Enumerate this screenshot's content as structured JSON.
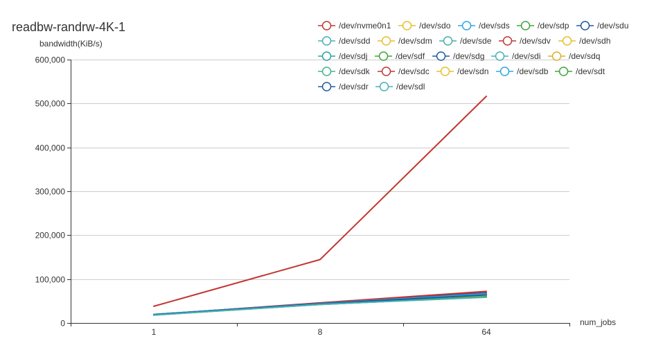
{
  "chart_data": {
    "type": "line",
    "title": "readbw-randrw-4K-1",
    "ylabel": "bandwidth(KiB/s)",
    "xlabel": "num_jobs",
    "categories": [
      "1",
      "8",
      "64"
    ],
    "ylim": [
      0,
      600000
    ],
    "yticks": [
      0,
      100000,
      200000,
      300000,
      400000,
      500000,
      600000
    ],
    "ytick_labels": [
      "0",
      "100,000",
      "200,000",
      "300,000",
      "400,000",
      "500,000",
      "600,000"
    ],
    "grid": true,
    "legend_position": "top-right",
    "series": [
      {
        "name": "/dev/nvme0n1",
        "color": "#c23531",
        "values": [
          38000,
          144500,
          516500
        ]
      },
      {
        "name": "/dev/sdo",
        "color": "#e5c02c",
        "values": [
          19000,
          43000,
          64000
        ]
      },
      {
        "name": "/dev/sds",
        "color": "#2ea7e0",
        "values": [
          19500,
          44000,
          65000
        ]
      },
      {
        "name": "/dev/sdp",
        "color": "#3fa63a",
        "values": [
          18500,
          42000,
          60000
        ]
      },
      {
        "name": "/dev/sdu",
        "color": "#1f5a9e",
        "values": [
          19000,
          45000,
          66000
        ]
      },
      {
        "name": "/dev/sdd",
        "color": "#45b0b8",
        "values": [
          18000,
          42500,
          61000
        ]
      },
      {
        "name": "/dev/sdm",
        "color": "#e5c02c",
        "values": [
          19500,
          44500,
          67000
        ]
      },
      {
        "name": "/dev/sde",
        "color": "#45b0a6",
        "values": [
          18500,
          43500,
          63000
        ]
      },
      {
        "name": "/dev/sdv",
        "color": "#c23531",
        "values": [
          19000,
          45500,
          71000
        ]
      },
      {
        "name": "/dev/sdh",
        "color": "#e5c02c",
        "values": [
          18000,
          43000,
          62000
        ]
      },
      {
        "name": "/dev/sdj",
        "color": "#2da0a8",
        "values": [
          19500,
          44000,
          64500
        ]
      },
      {
        "name": "/dev/sdf",
        "color": "#3fa63a",
        "values": [
          18500,
          42500,
          59000
        ]
      },
      {
        "name": "/dev/sdg",
        "color": "#1f5a9e",
        "values": [
          19000,
          45000,
          68000
        ]
      },
      {
        "name": "/dev/sdi",
        "color": "#45b0b8",
        "values": [
          18000,
          42000,
          60500
        ]
      },
      {
        "name": "/dev/sdq",
        "color": "#d8b22c",
        "values": [
          19500,
          43500,
          65500
        ]
      },
      {
        "name": "/dev/sdk",
        "color": "#3fb58a",
        "values": [
          18500,
          44000,
          63500
        ]
      },
      {
        "name": "/dev/sdc",
        "color": "#c23531",
        "values": [
          19000,
          46000,
          72000
        ]
      },
      {
        "name": "/dev/sdn",
        "color": "#e5c02c",
        "values": [
          18000,
          42500,
          61500
        ]
      },
      {
        "name": "/dev/sdb",
        "color": "#2ea7e0",
        "values": [
          19500,
          44500,
          66500
        ]
      },
      {
        "name": "/dev/sdt",
        "color": "#3fa63a",
        "values": [
          18500,
          43000,
          60000
        ]
      },
      {
        "name": "/dev/sdr",
        "color": "#1f5a9e",
        "values": [
          19000,
          44000,
          64000
        ]
      },
      {
        "name": "/dev/sdl",
        "color": "#45b0b8",
        "values": [
          18000,
          42500,
          58500
        ]
      }
    ]
  }
}
